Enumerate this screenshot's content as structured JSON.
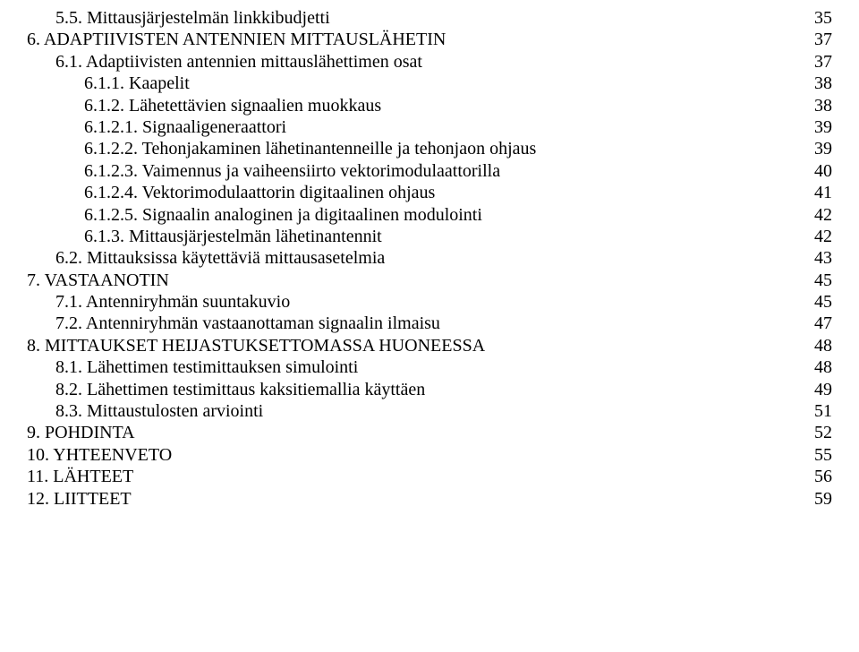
{
  "font_family": "Times New Roman",
  "font_size_pt": 15,
  "text_color": "#000000",
  "background_color": "#ffffff",
  "dot_leader_char": ".",
  "entries": [
    {
      "level": 2,
      "label": "5.5. Mittausjärjestelmän linkkibudjetti",
      "page": "35"
    },
    {
      "level": 1,
      "label": "6. ADAPTIIVISTEN ANTENNIEN MITTAUSLÄHETIN",
      "page": "37"
    },
    {
      "level": 2,
      "label": "6.1. Adaptiivisten antennien mittauslähettimen osat",
      "page": "37"
    },
    {
      "level": 3,
      "label": "6.1.1. Kaapelit",
      "page": "38"
    },
    {
      "level": 3,
      "label": "6.1.2. Lähetettävien signaalien muokkaus",
      "page": "38"
    },
    {
      "level": 3,
      "label": "6.1.2.1. Signaaligeneraattori",
      "page": "39"
    },
    {
      "level": 3,
      "label": "6.1.2.2. Tehonjakaminen lähetinantenneille ja tehonjaon ohjaus",
      "page": "39"
    },
    {
      "level": 3,
      "label": "6.1.2.3. Vaimennus ja vaiheensiirto vektorimodulaattorilla",
      "page": "40"
    },
    {
      "level": 3,
      "label": "6.1.2.4. Vektorimodulaattorin digitaalinen ohjaus",
      "page": "41"
    },
    {
      "level": 3,
      "label": "6.1.2.5. Signaalin analoginen ja digitaalinen modulointi",
      "page": "42"
    },
    {
      "level": 3,
      "label": "6.1.3. Mittausjärjestelmän lähetinantennit",
      "page": "42"
    },
    {
      "level": 2,
      "label": "6.2. Mittauksissa käytettäviä mittausasetelmia",
      "page": "43"
    },
    {
      "level": 1,
      "label": "7. VASTAANOTIN",
      "page": "45"
    },
    {
      "level": 2,
      "label": "7.1. Antenniryhmän suuntakuvio",
      "page": "45"
    },
    {
      "level": 2,
      "label": "7.2. Antenniryhmän vastaanottaman signaalin ilmaisu",
      "page": "47"
    },
    {
      "level": 1,
      "label": "8. MITTAUKSET HEIJASTUKSETTOMASSA HUONEESSA",
      "page": "48"
    },
    {
      "level": 2,
      "label": "8.1. Lähettimen testimittauksen simulointi",
      "page": "48"
    },
    {
      "level": 2,
      "label": "8.2. Lähettimen testimittaus kaksitiemallia käyttäen",
      "page": "49"
    },
    {
      "level": 2,
      "label": "8.3. Mittaustulosten arviointi",
      "page": "51"
    },
    {
      "level": 1,
      "label": "9. POHDINTA",
      "page": "52"
    },
    {
      "level": 1,
      "label": "10. YHTEENVETO",
      "page": "55"
    },
    {
      "level": 1,
      "label": "11. LÄHTEET",
      "page": "56"
    },
    {
      "level": 1,
      "label": "12. LIITTEET",
      "page": "59"
    }
  ]
}
